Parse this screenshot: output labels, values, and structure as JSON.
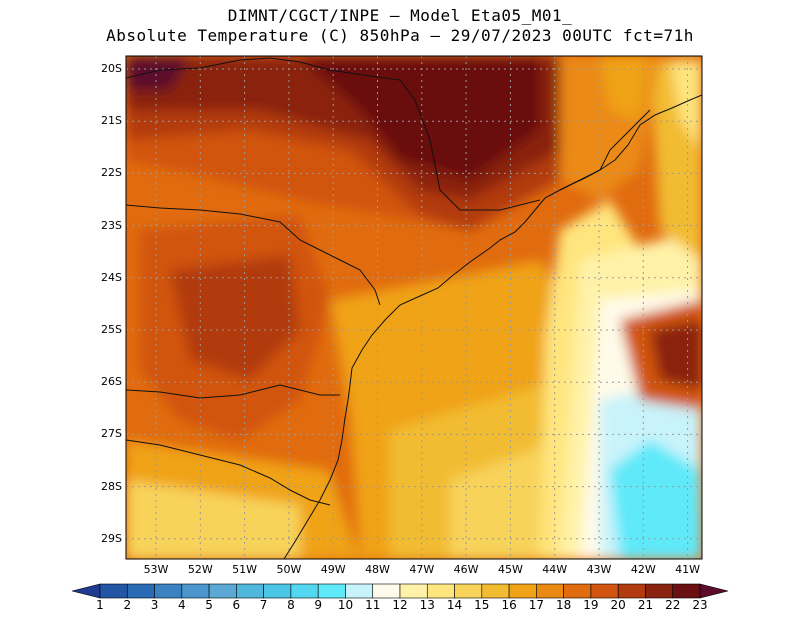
{
  "header": {
    "line1": "DIMNT/CGCT/INPE –  Model Eta05_M01_",
    "line2": "Absolute Temperature (C) 850hPa –  29/07/2023 00UTC fct=71h"
  },
  "axes": {
    "lat_labels": [
      "20S",
      "21S",
      "22S",
      "23S",
      "24S",
      "25S",
      "26S",
      "27S",
      "28S",
      "29S"
    ],
    "lon_labels": [
      "53W",
      "52W",
      "51W",
      "50W",
      "49W",
      "48W",
      "47W",
      "46W",
      "45W",
      "44W",
      "43W",
      "42W",
      "41W"
    ]
  },
  "colorbar": {
    "labels": [
      "1",
      "2",
      "3",
      "4",
      "5",
      "6",
      "7",
      "8",
      "9",
      "10",
      "11",
      "12",
      "13",
      "14",
      "15",
      "16",
      "17",
      "18",
      "19",
      "20",
      "21",
      "22",
      "23"
    ],
    "colors": [
      "#1f3b8f",
      "#2255a4",
      "#2a6bb5",
      "#3a82c2",
      "#4b96cc",
      "#5aa8d3",
      "#4fb6dc",
      "#4bc6e6",
      "#52d8f0",
      "#5fe9f9",
      "#c9f3fa",
      "#fffbea",
      "#fff2a8",
      "#ffe57e",
      "#f8d35a",
      "#f2bc30",
      "#f0a317",
      "#eb8a12",
      "#e16b0f",
      "#d15410",
      "#b23a0f",
      "#8a2210",
      "#6b1010",
      "#5c0b2a"
    ]
  },
  "regions": {
    "darkest": "#6b1010",
    "dark": "#8a2210",
    "red": "#b23a0f",
    "orange_red": "#d15410",
    "orange": "#e16b0f",
    "light_orange": "#eb8a12",
    "amber": "#f0a317",
    "gold": "#f2bc30",
    "yellow": "#f8d35a",
    "pale_yellow": "#ffe57e",
    "cream": "#fff2a8",
    "ivory": "#fffbea",
    "cyan_light": "#c9f3fa",
    "cyan": "#5fe9f9"
  }
}
